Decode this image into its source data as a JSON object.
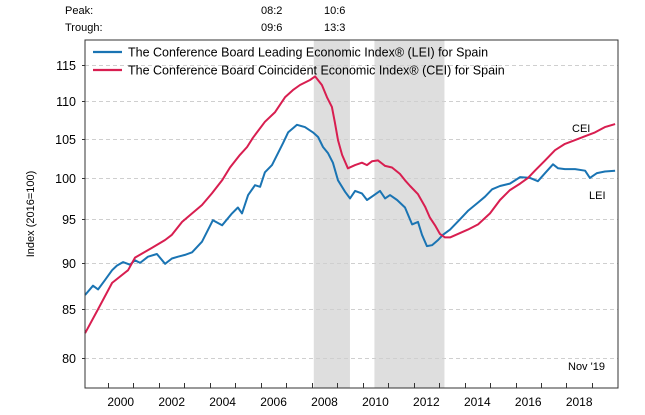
{
  "header": {
    "peak_label": "Peak:",
    "trough_label": "Trough:",
    "recessions": [
      {
        "peak": "08:2",
        "trough": "09:6"
      },
      {
        "peak": "10:6",
        "trough": "13:3"
      }
    ]
  },
  "chart_data": {
    "type": "line",
    "title": "",
    "xlabel": "",
    "ylabel": "Index (2016=100)",
    "y_scale": "log",
    "ylim": [
      77.5,
      118.5
    ],
    "xlim": [
      1999.1,
      2020.0
    ],
    "yticks": [
      80,
      85,
      90,
      95,
      100,
      105,
      110,
      115
    ],
    "xtick_years": [
      1999,
      2000,
      2001,
      2002,
      2003,
      2004,
      2005,
      2006,
      2007,
      2008,
      2009,
      2010,
      2011,
      2012,
      2013,
      2014,
      2015,
      2016,
      2017,
      2018,
      2019
    ],
    "xtick_labels": [
      "2000",
      "2002",
      "2004",
      "2006",
      "2008",
      "2010",
      "2012",
      "2014",
      "2016",
      "2018"
    ],
    "grid": "horizontal dashed",
    "legend_position": "top-left",
    "shaded_periods": [
      {
        "start": 2008.08,
        "end": 2009.5,
        "label": "recession"
      },
      {
        "start": 2010.46,
        "end": 2013.21,
        "label": "recession"
      }
    ],
    "annotation": "Nov '19",
    "series": [
      {
        "name": "The Conference Board Leading Economic Index® (LEI) for Spain",
        "short_label": "LEI",
        "color": "#1a74b3",
        "points": [
          [
            1999.1,
            86.5
          ],
          [
            1999.41,
            87.5
          ],
          [
            1999.61,
            87.1
          ],
          [
            1999.88,
            88.1
          ],
          [
            2000.16,
            89.2
          ],
          [
            2000.35,
            89.7
          ],
          [
            2000.59,
            90.1
          ],
          [
            2000.86,
            89.8
          ],
          [
            2001.06,
            90.3
          ],
          [
            2001.26,
            90.0
          ],
          [
            2001.57,
            90.7
          ],
          [
            2001.92,
            91.0
          ],
          [
            2002.24,
            89.9
          ],
          [
            2002.51,
            90.5
          ],
          [
            2002.75,
            90.7
          ],
          [
            2003.02,
            90.9
          ],
          [
            2003.3,
            91.2
          ],
          [
            2003.69,
            92.4
          ],
          [
            2004.12,
            94.9
          ],
          [
            2004.48,
            94.3
          ],
          [
            2004.87,
            95.7
          ],
          [
            2005.1,
            96.4
          ],
          [
            2005.26,
            95.7
          ],
          [
            2005.5,
            97.9
          ],
          [
            2005.77,
            99.1
          ],
          [
            2005.97,
            98.9
          ],
          [
            2006.16,
            100.7
          ],
          [
            2006.44,
            101.6
          ],
          [
            2006.87,
            104.4
          ],
          [
            2007.07,
            105.8
          ],
          [
            2007.42,
            106.8
          ],
          [
            2007.73,
            106.5
          ],
          [
            2008.05,
            105.8
          ],
          [
            2008.25,
            105.2
          ],
          [
            2008.44,
            103.9
          ],
          [
            2008.64,
            103.1
          ],
          [
            2008.83,
            101.9
          ],
          [
            2009.03,
            99.7
          ],
          [
            2009.31,
            98.3
          ],
          [
            2009.5,
            97.5
          ],
          [
            2009.7,
            98.4
          ],
          [
            2009.97,
            98.1
          ],
          [
            2010.17,
            97.3
          ],
          [
            2010.4,
            97.8
          ],
          [
            2010.68,
            98.4
          ],
          [
            2010.88,
            97.5
          ],
          [
            2011.07,
            97.9
          ],
          [
            2011.35,
            97.3
          ],
          [
            2011.66,
            96.4
          ],
          [
            2011.94,
            94.4
          ],
          [
            2012.17,
            94.7
          ],
          [
            2012.33,
            93.2
          ],
          [
            2012.52,
            91.9
          ],
          [
            2012.72,
            92.0
          ],
          [
            2012.96,
            92.6
          ],
          [
            2013.15,
            93.2
          ],
          [
            2013.43,
            93.8
          ],
          [
            2013.82,
            95.0
          ],
          [
            2014.13,
            96.0
          ],
          [
            2014.53,
            97.0
          ],
          [
            2014.8,
            97.7
          ],
          [
            2015.08,
            98.6
          ],
          [
            2015.39,
            99.0
          ],
          [
            2015.78,
            99.3
          ],
          [
            2016.18,
            100.1
          ],
          [
            2016.57,
            100.0
          ],
          [
            2016.88,
            99.6
          ],
          [
            2017.16,
            100.6
          ],
          [
            2017.47,
            101.7
          ],
          [
            2017.67,
            101.2
          ],
          [
            2017.94,
            101.1
          ],
          [
            2018.34,
            101.1
          ],
          [
            2018.73,
            100.9
          ],
          [
            2018.92,
            100.0
          ],
          [
            2019.2,
            100.6
          ],
          [
            2019.51,
            100.8
          ],
          [
            2019.91,
            100.9
          ]
        ]
      },
      {
        "name": "The Conference Board Coincident Economic Index® (CEI) for Spain",
        "short_label": "CEI",
        "color": "#d81e50",
        "points": [
          [
            1999.1,
            82.5
          ],
          [
            1999.61,
            85.0
          ],
          [
            2000.16,
            87.8
          ],
          [
            2000.79,
            89.2
          ],
          [
            2001.06,
            90.6
          ],
          [
            2001.73,
            91.7
          ],
          [
            2002.24,
            92.6
          ],
          [
            2002.51,
            93.2
          ],
          [
            2002.91,
            94.7
          ],
          [
            2003.3,
            95.7
          ],
          [
            2003.69,
            96.7
          ],
          [
            2004.08,
            98.1
          ],
          [
            2004.48,
            99.7
          ],
          [
            2004.79,
            101.3
          ],
          [
            2005.18,
            102.9
          ],
          [
            2005.46,
            103.9
          ],
          [
            2005.69,
            105.1
          ],
          [
            2006.16,
            107.2
          ],
          [
            2006.56,
            108.5
          ],
          [
            2006.95,
            110.5
          ],
          [
            2007.26,
            111.5
          ],
          [
            2007.54,
            112.2
          ],
          [
            2007.93,
            112.9
          ],
          [
            2008.13,
            113.4
          ],
          [
            2008.4,
            112.2
          ],
          [
            2008.6,
            110.5
          ],
          [
            2008.79,
            109.2
          ],
          [
            2008.91,
            107.1
          ],
          [
            2009.03,
            104.8
          ],
          [
            2009.19,
            102.9
          ],
          [
            2009.42,
            101.2
          ],
          [
            2009.7,
            101.6
          ],
          [
            2009.97,
            101.9
          ],
          [
            2010.17,
            101.6
          ],
          [
            2010.37,
            102.1
          ],
          [
            2010.6,
            102.2
          ],
          [
            2010.88,
            101.5
          ],
          [
            2011.15,
            101.3
          ],
          [
            2011.46,
            100.5
          ],
          [
            2011.66,
            99.7
          ],
          [
            2011.86,
            99.0
          ],
          [
            2012.17,
            98.0
          ],
          [
            2012.45,
            96.5
          ],
          [
            2012.64,
            95.2
          ],
          [
            2012.84,
            94.3
          ],
          [
            2013.03,
            93.3
          ],
          [
            2013.23,
            92.9
          ],
          [
            2013.43,
            92.9
          ],
          [
            2013.74,
            93.3
          ],
          [
            2014.13,
            93.8
          ],
          [
            2014.53,
            94.4
          ],
          [
            2015.0,
            95.7
          ],
          [
            2015.39,
            97.3
          ],
          [
            2015.78,
            98.5
          ],
          [
            2016.18,
            99.3
          ],
          [
            2016.49,
            100.0
          ],
          [
            2016.76,
            100.9
          ],
          [
            2017.16,
            102.2
          ],
          [
            2017.55,
            103.5
          ],
          [
            2017.94,
            104.3
          ],
          [
            2018.34,
            104.8
          ],
          [
            2018.73,
            105.3
          ],
          [
            2019.12,
            105.8
          ],
          [
            2019.51,
            106.5
          ],
          [
            2019.91,
            106.9
          ]
        ]
      }
    ]
  }
}
